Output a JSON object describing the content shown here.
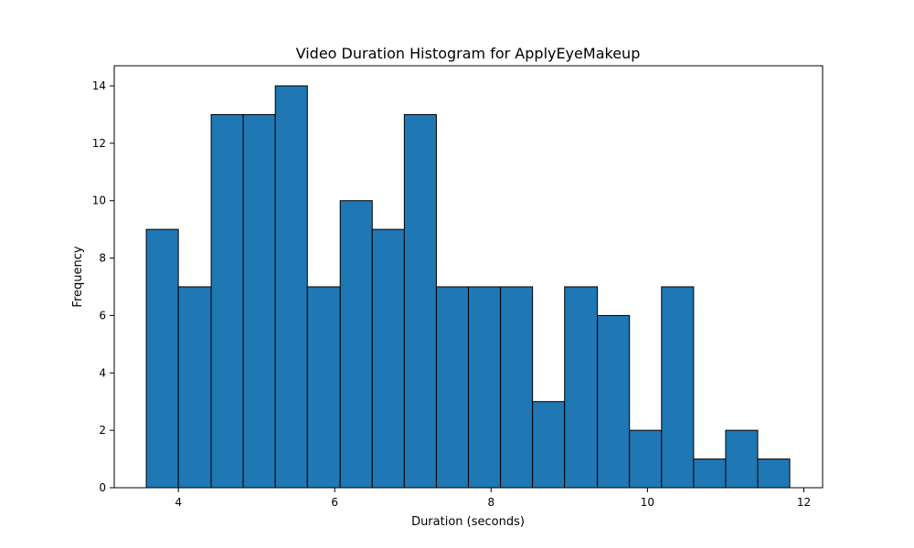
{
  "chart_data": {
    "type": "bar",
    "title": "Video Duration Histogram for ApplyEyeMakeup",
    "xlabel": "Duration (seconds)",
    "ylabel": "Frequency",
    "xlim": [
      3.18,
      12.24
    ],
    "ylim": [
      0,
      14.7
    ],
    "x_ticks": [
      4,
      6,
      8,
      10,
      12
    ],
    "y_ticks": [
      0,
      2,
      4,
      6,
      8,
      10,
      12,
      14
    ],
    "bin_edges": [
      3.59,
      4.0,
      4.42,
      4.83,
      5.24,
      5.65,
      6.07,
      6.48,
      6.89,
      7.3,
      7.71,
      8.12,
      8.53,
      8.94,
      9.36,
      9.77,
      10.18,
      10.59,
      11.0,
      11.41,
      11.82
    ],
    "values": [
      9,
      7,
      13,
      13,
      14,
      7,
      10,
      9,
      13,
      7,
      7,
      7,
      3,
      7,
      6,
      2,
      7,
      1,
      2,
      1
    ],
    "grid": false,
    "colors": {
      "bar_fill": "#1f77b4",
      "bar_edge": "#000000",
      "axes": "#000000"
    }
  }
}
